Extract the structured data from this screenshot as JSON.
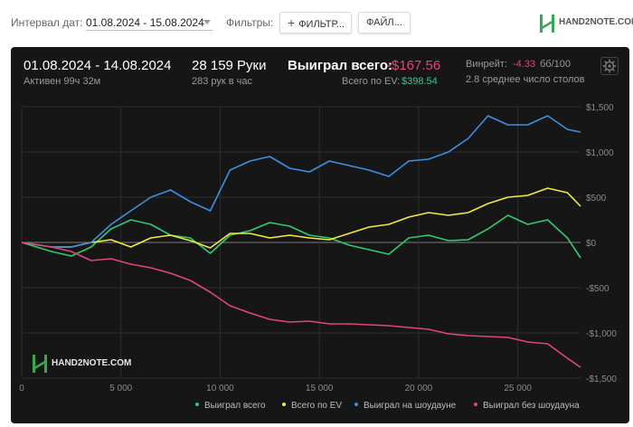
{
  "topbar": {
    "date_label": "Интервал дат:",
    "date_value": "01.08.2024 - 15.08.2024",
    "filters_label": "Фильтры:",
    "filter_button": "ФИЛЬТР...",
    "files_button": "ФАЙЛ...",
    "logo_text": "HAND2NOTE.COM"
  },
  "summary": {
    "period": "01.08.2024 - 14.08.2024",
    "active": "Активен 99ч 32м",
    "hands": "28 159 Руки",
    "hands_per_hour": "283 рук в час",
    "won_label": "Выиграл всего:",
    "won_value": "-$167.56",
    "ev_label": "Всего по EV:",
    "ev_value": "$398.54",
    "winrate_label": "Винрейт:",
    "winrate_value": "-4.33",
    "winrate_unit": "бб/100",
    "tables": "2.8 среднее число столов"
  },
  "watermark": "HAND2NOTE.COM",
  "colors": {
    "total": "#2ecc71",
    "ev": "#f4ea3c",
    "showdown": "#3d8fe0",
    "non_showdown": "#e0457b"
  },
  "chart_data": {
    "type": "line",
    "x_ticks": [
      "0",
      "5 000",
      "10 000",
      "15 000",
      "20 000",
      "25 000"
    ],
    "x_tick_values": [
      0,
      5000,
      10000,
      15000,
      20000,
      25000
    ],
    "y_ticks": [
      "$1,500",
      "$1,000",
      "$500",
      "$0",
      "-$500",
      "-$1,000",
      "-$1,500"
    ],
    "y_tick_values": [
      1500,
      1000,
      500,
      0,
      -500,
      -1000,
      -1500
    ],
    "xlim": [
      0,
      28159
    ],
    "ylim": [
      -1500,
      1500
    ],
    "grid": true,
    "legend_position": "bottom",
    "series": [
      {
        "name": "Выиграл всего",
        "color": "#2ecc71",
        "x": [
          0,
          1500,
          2500,
          3500,
          4500,
          5500,
          6500,
          7500,
          8500,
          9500,
          10500,
          11500,
          12500,
          13500,
          14500,
          15500,
          16500,
          17500,
          18500,
          19500,
          20500,
          21500,
          22500,
          23500,
          24500,
          25500,
          26500,
          27500,
          28159
        ],
        "y": [
          0,
          -100,
          -150,
          -50,
          150,
          250,
          200,
          80,
          50,
          -120,
          80,
          130,
          220,
          180,
          80,
          50,
          -30,
          -80,
          -130,
          50,
          80,
          20,
          30,
          150,
          300,
          200,
          250,
          50,
          -170
        ]
      },
      {
        "name": "Всего по EV",
        "color": "#f4ea3c",
        "x": [
          0,
          1500,
          2500,
          3500,
          4500,
          5500,
          6500,
          7500,
          8500,
          9500,
          10500,
          11500,
          12500,
          13500,
          14500,
          15500,
          16500,
          17500,
          18500,
          19500,
          20500,
          21500,
          22500,
          23500,
          24500,
          25500,
          26500,
          27500,
          28159
        ],
        "y": [
          0,
          -50,
          -50,
          0,
          30,
          -50,
          50,
          80,
          20,
          -60,
          100,
          100,
          50,
          80,
          50,
          30,
          100,
          170,
          200,
          280,
          330,
          300,
          330,
          430,
          500,
          520,
          600,
          550,
          400
        ]
      },
      {
        "name": "Выиграл на шоудауне",
        "color": "#3d8fe0",
        "x": [
          0,
          1500,
          2500,
          3500,
          4500,
          5500,
          6500,
          7500,
          8500,
          9500,
          10500,
          11500,
          12500,
          13500,
          14500,
          15500,
          16500,
          17500,
          18500,
          19500,
          20500,
          21500,
          22500,
          23500,
          24500,
          25500,
          26500,
          27500,
          28159
        ],
        "y": [
          0,
          -50,
          -50,
          0,
          200,
          350,
          500,
          580,
          450,
          350,
          800,
          900,
          950,
          820,
          780,
          900,
          850,
          800,
          730,
          900,
          920,
          1000,
          1150,
          1400,
          1300,
          1300,
          1400,
          1250,
          1220
        ]
      },
      {
        "name": "Выиграл без шоудауна",
        "color": "#e0457b",
        "x": [
          0,
          1500,
          2500,
          3500,
          4500,
          5500,
          6500,
          7500,
          8500,
          9500,
          10500,
          11500,
          12500,
          13500,
          14500,
          15500,
          16500,
          17500,
          18500,
          19500,
          20500,
          21500,
          22500,
          23500,
          24500,
          25500,
          26500,
          27500,
          28159
        ],
        "y": [
          0,
          -50,
          -100,
          -200,
          -180,
          -240,
          -280,
          -340,
          -420,
          -550,
          -700,
          -780,
          -850,
          -880,
          -870,
          -900,
          -900,
          -910,
          -920,
          -940,
          -960,
          -1010,
          -1030,
          -1040,
          -1050,
          -1100,
          -1120,
          -1280,
          -1380
        ]
      }
    ]
  }
}
